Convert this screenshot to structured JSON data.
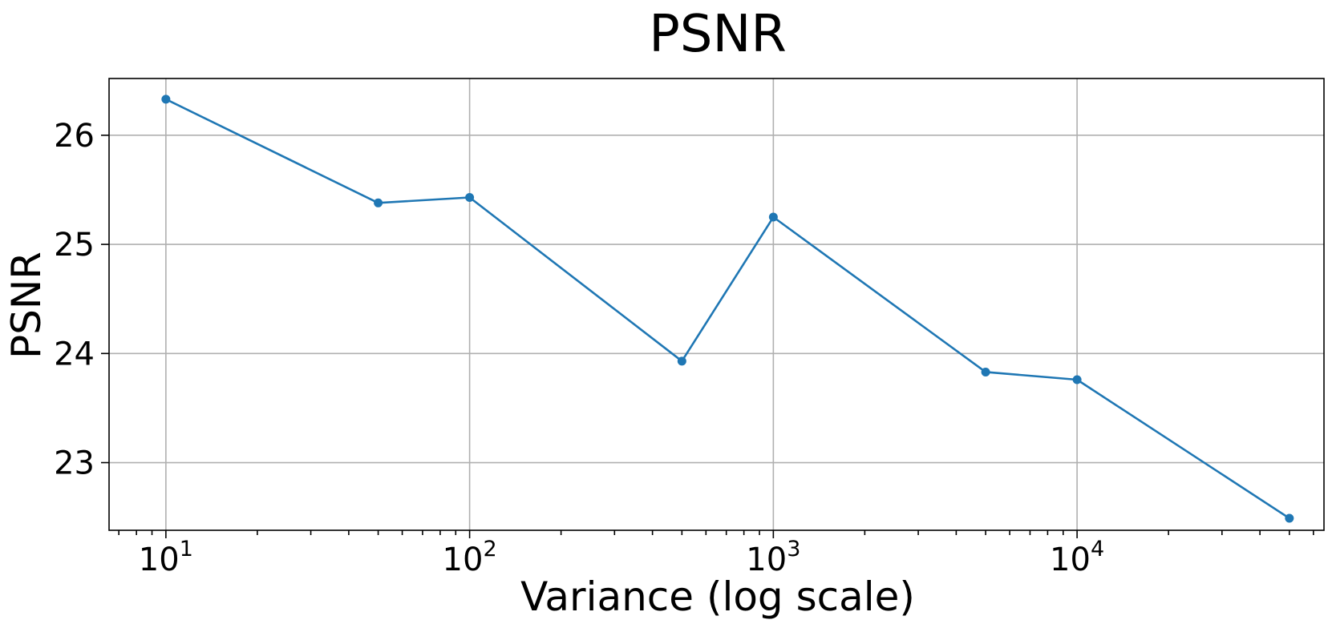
{
  "chart_data": {
    "type": "line",
    "title": "PSNR",
    "xlabel": "Variance (log scale)",
    "ylabel": "PSNR",
    "xscale": "log",
    "xlim": [
      6.5,
      65000
    ],
    "ylim": [
      22.38,
      26.52
    ],
    "grid": true,
    "legend": "none",
    "color": "#1f77b4",
    "x_major_ticks": [
      {
        "base": "10",
        "exp": "1",
        "value": 10
      },
      {
        "base": "10",
        "exp": "2",
        "value": 100
      },
      {
        "base": "10",
        "exp": "3",
        "value": 1000
      },
      {
        "base": "10",
        "exp": "4",
        "value": 10000
      }
    ],
    "y_ticks": [
      {
        "label": "23",
        "value": 23
      },
      {
        "label": "24",
        "value": 24
      },
      {
        "label": "25",
        "value": 25
      },
      {
        "label": "26",
        "value": 26
      }
    ],
    "series": [
      {
        "x": [
          10,
          50,
          100,
          500,
          1000,
          5000,
          10000,
          50000
        ],
        "y": [
          26.33,
          25.38,
          25.43,
          23.93,
          25.25,
          23.83,
          23.76,
          22.49
        ]
      }
    ]
  }
}
